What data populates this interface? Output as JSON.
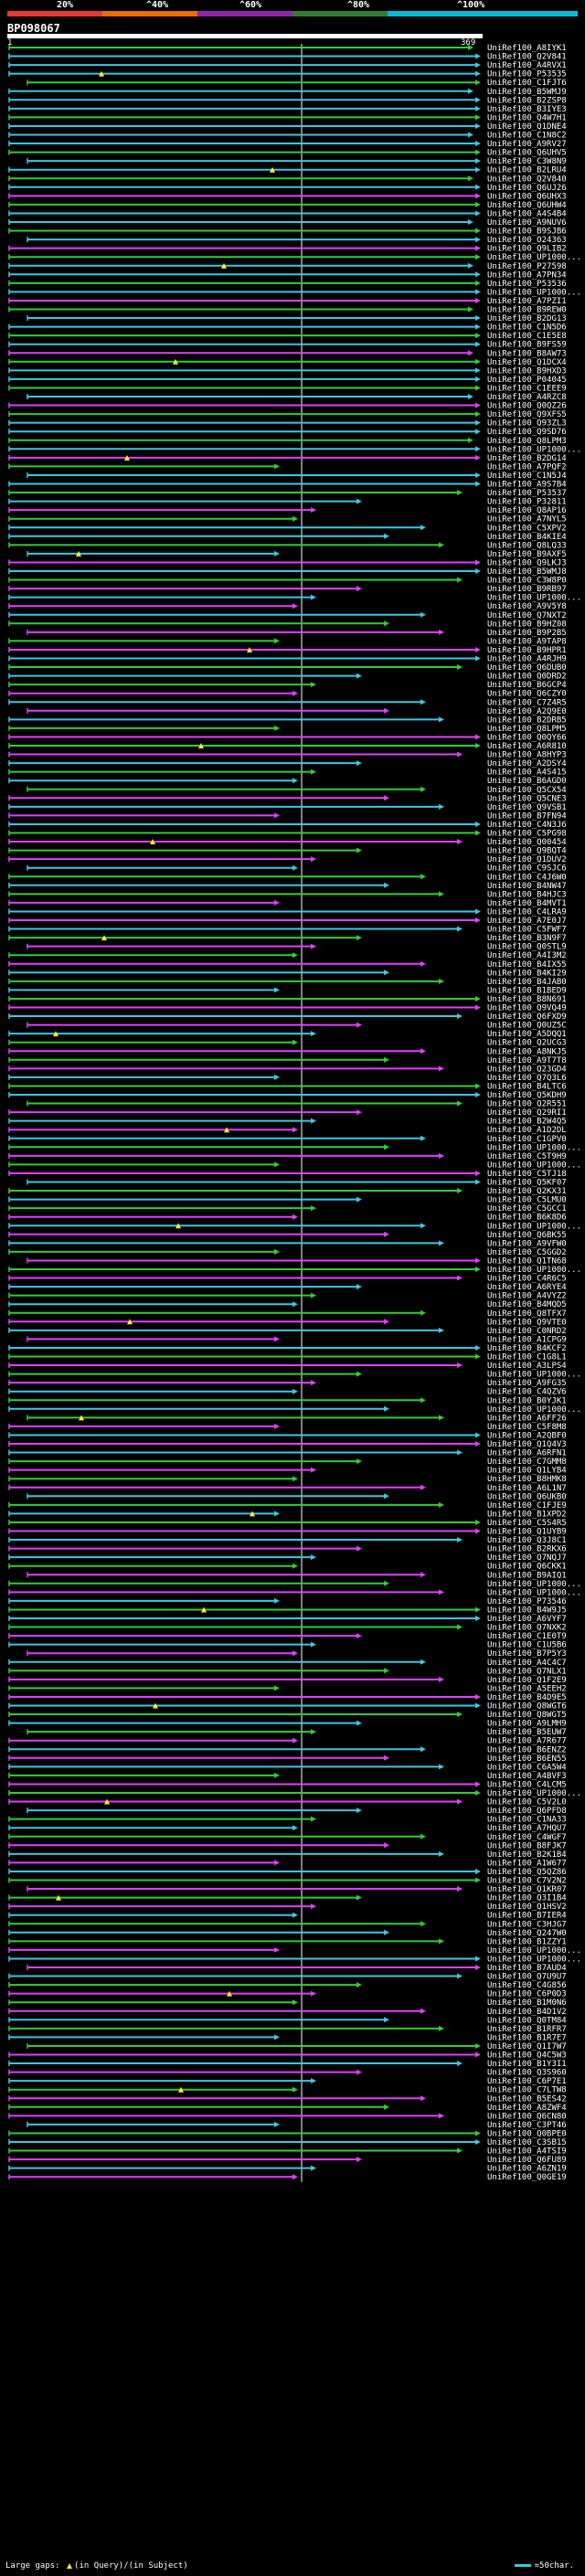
{
  "scale": {
    "labels": [
      "20%",
      "^40%",
      "^60%",
      "^80%",
      "^100%"
    ],
    "colors": [
      "#e53935",
      "#ef6c00",
      "#8e24aa",
      "#2e7d32",
      "#00bcd4"
    ]
  },
  "query": {
    "id": "BP098067",
    "start": "1",
    "end": "369"
  },
  "colors": {
    "cyan": "#3ec6e0",
    "green": "#33cc33",
    "magenta": "#e040fb",
    "white": "#ffffff",
    "yellow": "#ffeb3b"
  },
  "hits": [
    "UniRef100_A8IYK1",
    "UniRef100_Q2V841",
    "UniRef100_A4RVX1",
    "UniRef100_P53535",
    "UniRef100_C1FJT6",
    "UniRef100_B5WMJ9",
    "UniRef100_B2ZSP8",
    "UniRef100_B3IYE3",
    "UniRef100_Q4W7H1",
    "UniRef100_Q1DNE4",
    "UniRef100_C1N8C2",
    "UniRef100_A9RV27",
    "UniRef100_Q6UHV5",
    "UniRef100_C3W8N9",
    "UniRef100_B2LRU4",
    "UniRef100_Q2V840",
    "UniRef100_Q6UJ26",
    "UniRef100_Q6UHX3",
    "UniRef100_Q6UHW4",
    "UniRef100_A4S4B4",
    "UniRef100_A9NUV6",
    "UniRef100_B9SJB6",
    "UniRef100_O24363",
    "UniRef100_Q9LIB2",
    "UniRef100_UP1000...",
    "UniRef100_P27598",
    "UniRef100_A7PN34",
    "UniRef100_P53536",
    "UniRef100_UP1000...",
    "UniRef100_A7PZI1",
    "UniRef100_B9REW0",
    "UniRef100_B2DG13",
    "UniRef100_C1N5D6",
    "UniRef100_C1E5E8",
    "UniRef100_B9FS59",
    "UniRef100_B8AW73",
    "UniRef100_Q1DCX4",
    "UniRef100_B9HXD3",
    "UniRef100_P04045",
    "UniRef100_C1EEE9",
    "UniRef100_A4RZC8",
    "UniRef100_Q0QZ26",
    "UniRef100_Q9XFS5",
    "UniRef100_Q93ZL3",
    "UniRef100_Q9SD76",
    "UniRef100_Q8LPM3",
    "UniRef100_UP1000...",
    "UniRef100_B2DG14",
    "UniRef100_A7PQF2",
    "UniRef100_C1N5J4",
    "UniRef100_A9S7B4",
    "UniRef100_P53537",
    "UniRef100_P32811",
    "UniRef100_Q8AP16",
    "UniRef100_A7NYL5",
    "UniRef100_C5XPV2",
    "UniRef100_B4KIE4",
    "UniRef100_Q8LQ33",
    "UniRef100_B9AXF5",
    "UniRef100_Q9LKJ3",
    "UniRef100_B5WMJ8",
    "UniRef100_C3W8P0",
    "UniRef100_B9RB97",
    "UniRef100_UP1000...",
    "UniRef100_A9V5Y8",
    "UniRef100_Q7NXT2",
    "UniRef100_B9HZ08",
    "UniRef100_B9P2B5",
    "UniRef100_A9TAP8",
    "UniRef100_B9HPR1",
    "UniRef100_A4RJH9",
    "UniRef100_Q6DUB0",
    "UniRef100_Q0DRD2",
    "UniRef100_B6GCP4",
    "UniRef100_Q6CZY0",
    "UniRef100_C7Z4R5",
    "UniRef100_A2Q9E0",
    "UniRef100_B2DRB5",
    "UniRef100_Q8LPM5",
    "UniRef100_Q0QY66",
    "UniRef100_A6R810",
    "UniRef100_A8HYP3",
    "UniRef100_A2DSY4",
    "UniRef100_A4S415",
    "UniRef100_B6AGD0",
    "UniRef100_Q5CX54",
    "UniRef100_Q5CNE3",
    "UniRef100_Q9VSB1",
    "UniRef100_B7FN94",
    "UniRef100_C4N3J6",
    "UniRef100_C5PG98",
    "UniRef100_Q00454",
    "UniRef100_Q9BQT4",
    "UniRef100_Q1DUV2",
    "UniRef100_C9SJC6",
    "UniRef100_C4J6W0",
    "UniRef100_B4NW47",
    "UniRef100_B4HJC3",
    "UniRef100_B4MVT1",
    "UniRef100_C4LRA9",
    "UniRef100_A7E0J7",
    "UniRef100_C5FWF7",
    "UniRef100_B3N9F7",
    "UniRef100_Q0STL9",
    "UniRef100_A4I3M2",
    "UniRef100_B4IX55",
    "UniRef100_B4KI29",
    "UniRef100_B4JAB0",
    "UniRef100_B1BED9",
    "UniRef100_B8N691",
    "UniRef100_Q9VQ49",
    "UniRef100_Q6FXD9",
    "UniRef100_Q0UZ5C",
    "UniRef100_A5DQQ1",
    "UniRef100_Q2UCG3",
    "UniRef100_A8NKJ5",
    "UniRef100_A9T7T8",
    "UniRef100_Q23GD4",
    "UniRef100_Q7Q3L6",
    "UniRef100_B4LTC6",
    "UniRef100_Q5KDH9",
    "UniRef100_Q2R551",
    "UniRef100_Q29RI1",
    "UniRef100_B2W4Q5",
    "UniRef100_A1D2DL",
    "UniRef100_C1GPV0",
    "UniRef100_UP1000...",
    "UniRef100_C5T9H9",
    "UniRef100_UP1000...",
    "UniRef100_C5TJ18",
    "UniRef100_Q5KF07",
    "UniRef100_Q2KX31",
    "UniRef100_C5LMU0",
    "UniRef100_C5GCC1",
    "UniRef100_B6K8D6",
    "UniRef100_UP1000...",
    "UniRef100_Q6BK55",
    "UniRef100_A9VFW0",
    "UniRef100_C5GGD2",
    "UniRef100_Q1TN68",
    "UniRef100_UP1000...",
    "UniRef100_C4R6C5",
    "UniRef100_A6RYE4",
    "UniRef100_A4VYZ2",
    "UniRef100_B4MQD5",
    "UniRef100_Q8TFX7",
    "UniRef100_Q9VTE0",
    "UniRef100_C0NRD2",
    "UniRef100_A1CPG9",
    "UniRef100_B4KCF2",
    "UniRef100_C1G8L1",
    "UniRef100_A3LPS4",
    "UniRef100_UP1000...",
    "UniRef100_A9FG35",
    "UniRef100_C4QZV6",
    "UniRef100_B0YJK1",
    "UniRef100_UP1000...",
    "UniRef100_A6FF26",
    "UniRef100_C5F8M8",
    "UniRef100_A2QBF0",
    "UniRef100_Q1Q4V3",
    "UniRef100_A6RFN1",
    "UniRef100_C7GMM8",
    "UniRef100_Q1LYB4",
    "UniRef100_B8HMK8",
    "UniRef100_A6L1N7",
    "UniRef100_Q6UKB0",
    "UniRef100_C1FJE9",
    "UniRef100_B1XPD2",
    "UniRef100_C5S4R5",
    "UniRef100_Q1UYB9",
    "UniRef100_Q3J8C1",
    "UniRef100_B2RKX6",
    "UniRef100_Q7NQJ7",
    "UniRef100_Q6CKK1",
    "UniRef100_B9AIQ1",
    "UniRef100_UP1000...",
    "UniRef100_UP1000...",
    "UniRef100_P73546",
    "UniRef100_B4W9J5",
    "UniRef100_A6VYF7",
    "UniRef100_Q7NXK2",
    "UniRef100_C1E0T9",
    "UniRef100_C1U5B6",
    "UniRef100_B7P5Y3",
    "UniRef100_A4C4C7",
    "UniRef100_Q7NLX1",
    "UniRef100_Q1F2E9",
    "UniRef100_A5EEH2",
    "UniRef100_B4D9E5",
    "UniRef100_Q8WGT6",
    "UniRef100_Q8WGT5",
    "UniRef100_A9LMH9",
    "UniRef100_B5EUW7",
    "UniRef100_A7R677",
    "UniRef100_B6ENZ2",
    "UniRef100_B6EN55",
    "UniRef100_C6A5W4",
    "UniRef100_A4BVF3",
    "UniRef100_C4LCM5",
    "UniRef100_UP1000...",
    "UniRef100_C5V2L0",
    "UniRef100_Q6PFD8",
    "UniRef100_C1NA33",
    "UniRef100_A7HQU7",
    "UniRef100_C4WGF7",
    "UniRef100_B8FJK7",
    "UniRef100_B2K1B4",
    "UniRef100_A1W677",
    "UniRef100_Q5QZ86",
    "UniRef100_C7V2N2",
    "UniRef100_Q1KR07",
    "UniRef100_Q3I1B4",
    "UniRef100_Q1HSV2",
    "UniRef100_B7IER4",
    "UniRef100_C3HJG7",
    "UniRef100_Q247W0",
    "UniRef100_B1ZZY1",
    "UniRef100_UP1000...",
    "UniRef100_UP1000...",
    "UniRef100_B7AUD4",
    "UniRef100_Q7U9U7",
    "UniRef100_C4G856",
    "UniRef100_C6P0D3",
    "UniRef100_B1M0N6",
    "UniRef100_B4D1V2",
    "UniRef100_Q0TM84",
    "UniRef100_B1RFR7",
    "UniRef100_B1R7E7",
    "UniRef100_Q1I7W7",
    "UniRef100_Q4C5W3",
    "UniRef100_B1Y3I1",
    "UniRef100_Q3S960",
    "UniRef100_C6P7E1",
    "UniRef100_C7LTW8",
    "UniRef100_B5ES42",
    "UniRef100_A8ZWF4",
    "UniRef100_Q6CN80",
    "UniRef100_C3PT46",
    "UniRef100_Q0BPE0",
    "UniRef100_C3SB15",
    "UniRef100_A4TSI9",
    "UniRef100_Q6FU89",
    "UniRef100_A6ZN19",
    "UniRef100_Q0GE19"
  ],
  "legend": {
    "left": "Large gaps:",
    "in_query": "(in Query)",
    "sep": "/",
    "in_subject": "(in Subject)",
    "right": "=50char."
  }
}
